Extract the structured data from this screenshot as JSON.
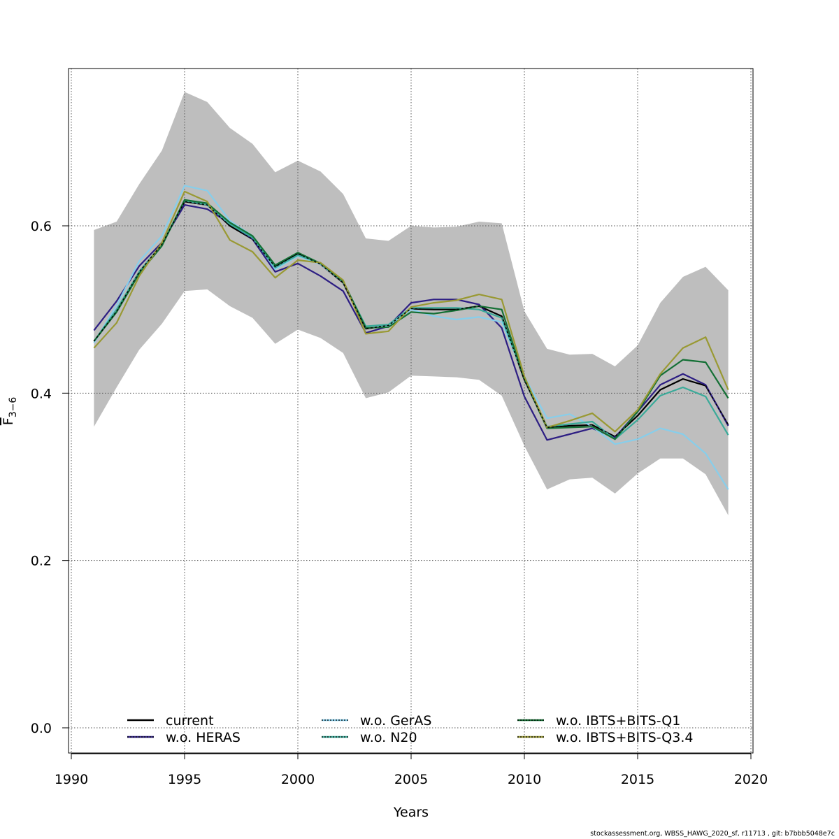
{
  "chart_data": {
    "type": "line",
    "xlabel": "Years",
    "ylabel_main": "F",
    "ylabel_sub": "3−6",
    "xlim": [
      1990,
      2020
    ],
    "ylim": [
      -0.03,
      0.79
    ],
    "x_ticks": [
      1990,
      1995,
      2000,
      2005,
      2010,
      2015,
      2020
    ],
    "y_ticks": [
      0.0,
      0.2,
      0.4,
      0.6
    ],
    "y_tick_labels": [
      "0.0",
      "0.2",
      "0.4",
      "0.6"
    ],
    "grid": true,
    "legend_position": "bottom",
    "x": [
      1991,
      1992,
      1993,
      1994,
      1995,
      1996,
      1997,
      1998,
      1999,
      2000,
      2001,
      2002,
      2003,
      2004,
      2005,
      2006,
      2007,
      2008,
      2009,
      2010,
      2011,
      2012,
      2013,
      2014,
      2015,
      2016,
      2017,
      2018,
      2019
    ],
    "band": {
      "color": "#bebebe",
      "upper": [
        0.595,
        0.605,
        0.65,
        0.69,
        0.76,
        0.748,
        0.717,
        0.698,
        0.664,
        0.678,
        0.665,
        0.638,
        0.585,
        0.582,
        0.6,
        0.598,
        0.599,
        0.605,
        0.603,
        0.498,
        0.453,
        0.446,
        0.447,
        0.432,
        0.457,
        0.508,
        0.539,
        0.551,
        0.523
      ],
      "lower": [
        0.36,
        0.407,
        0.452,
        0.483,
        0.522,
        0.524,
        0.504,
        0.49,
        0.459,
        0.476,
        0.466,
        0.448,
        0.394,
        0.401,
        0.421,
        0.42,
        0.419,
        0.416,
        0.397,
        0.337,
        0.285,
        0.297,
        0.299,
        0.28,
        0.304,
        0.322,
        0.322,
        0.303,
        0.254
      ]
    },
    "series": [
      {
        "name": "current",
        "color": "#000000",
        "dash": "solid",
        "values": [
          0.462,
          0.498,
          0.545,
          0.578,
          0.629,
          0.625,
          0.6,
          0.584,
          0.551,
          0.567,
          0.554,
          0.532,
          0.477,
          0.481,
          0.501,
          0.5,
          0.5,
          0.504,
          0.492,
          0.416,
          0.359,
          0.361,
          0.362,
          0.348,
          0.373,
          0.404,
          0.417,
          0.409,
          0.362
        ]
      },
      {
        "name": "w.o. HERAS",
        "color": "#2d1e83",
        "dash": "solid",
        "values": [
          0.475,
          0.51,
          0.552,
          0.58,
          0.625,
          0.62,
          0.603,
          0.584,
          0.545,
          0.555,
          0.54,
          0.522,
          0.472,
          0.48,
          0.508,
          0.512,
          0.512,
          0.506,
          0.478,
          0.396,
          0.344,
          0.351,
          0.358,
          0.347,
          0.378,
          0.41,
          0.423,
          0.41,
          0.361
        ]
      },
      {
        "name": "w.o. GerAS",
        "color": "#87ceeb",
        "dash": "solid",
        "values": [
          0.46,
          0.505,
          0.558,
          0.588,
          0.648,
          0.642,
          0.606,
          0.588,
          0.548,
          0.564,
          0.554,
          0.533,
          0.478,
          0.48,
          0.5,
          0.492,
          0.488,
          0.491,
          0.485,
          0.42,
          0.37,
          0.375,
          0.36,
          0.339,
          0.345,
          0.358,
          0.351,
          0.328,
          0.285
        ]
      },
      {
        "name": "w.o. N20",
        "color": "#3aaa99",
        "dash": "solid",
        "values": [
          0.462,
          0.5,
          0.545,
          0.578,
          0.63,
          0.625,
          0.602,
          0.586,
          0.55,
          0.565,
          0.555,
          0.533,
          0.48,
          0.482,
          0.502,
          0.502,
          0.502,
          0.5,
          0.49,
          0.418,
          0.36,
          0.363,
          0.366,
          0.345,
          0.368,
          0.397,
          0.407,
          0.396,
          0.35
        ]
      },
      {
        "name": "w.o. IBTS+BITS-Q1",
        "color": "#147035",
        "dash": "solid",
        "values": [
          0.462,
          0.497,
          0.543,
          0.576,
          0.631,
          0.627,
          0.604,
          0.588,
          0.553,
          0.568,
          0.555,
          0.534,
          0.478,
          0.479,
          0.497,
          0.495,
          0.499,
          0.504,
          0.5,
          0.417,
          0.358,
          0.359,
          0.36,
          0.345,
          0.378,
          0.421,
          0.44,
          0.437,
          0.394
        ]
      },
      {
        "name": "w.o. IBTS+BITS-Q3.4",
        "color": "#999933",
        "dash": "solid",
        "values": [
          0.454,
          0.484,
          0.54,
          0.58,
          0.641,
          0.629,
          0.583,
          0.569,
          0.538,
          0.559,
          0.556,
          0.535,
          0.471,
          0.474,
          0.503,
          0.508,
          0.511,
          0.518,
          0.512,
          0.42,
          0.359,
          0.367,
          0.376,
          0.354,
          0.38,
          0.423,
          0.454,
          0.467,
          0.404
        ]
      }
    ]
  },
  "footer_text": "stockassessment.org, WBSS_HAWG_2020_sf, r11713 , git: b7bbb5048e7c"
}
